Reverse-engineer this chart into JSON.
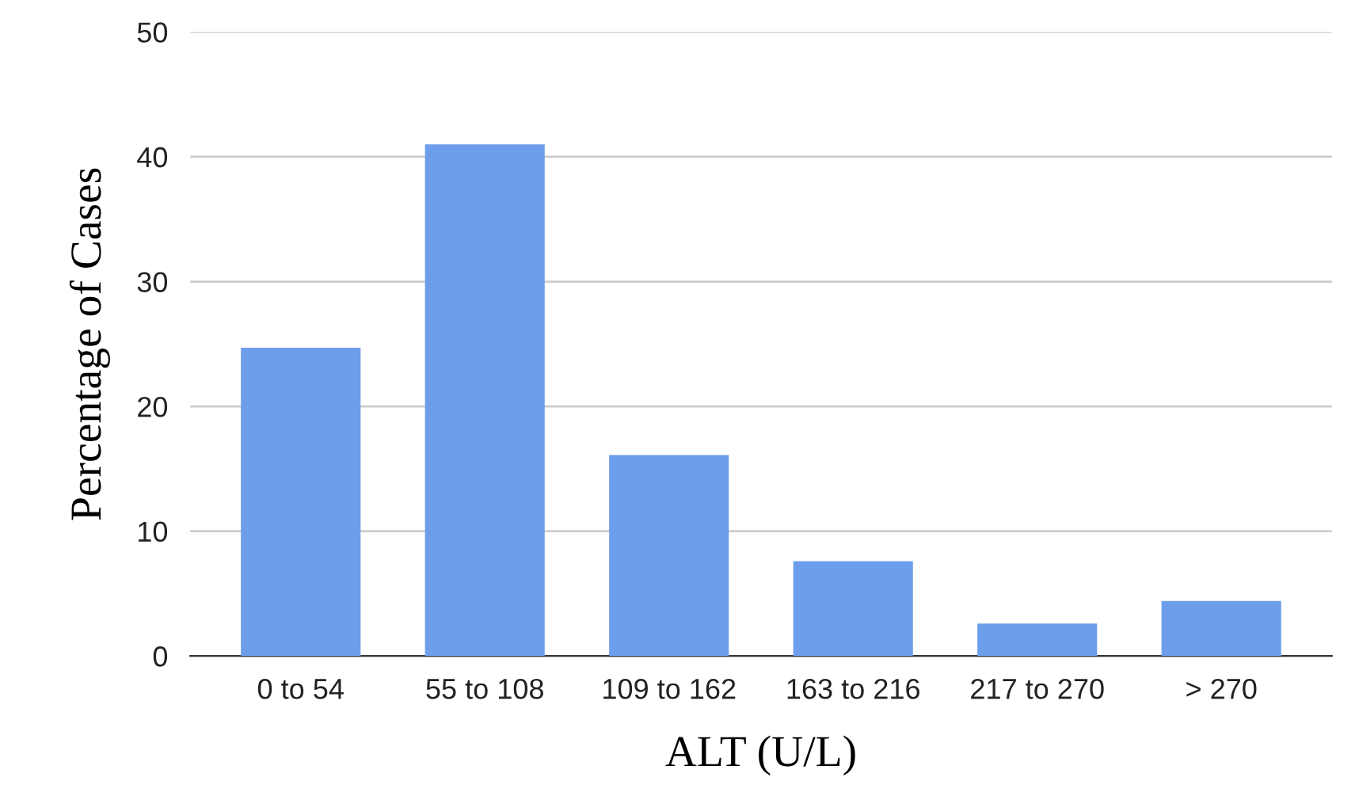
{
  "chart_data": {
    "type": "bar",
    "xlabel": "ALT (U/L)",
    "ylabel": "Percentage of Cases",
    "categories": [
      "0 to 54",
      "55 to 108",
      "109 to 162",
      "163 to 216",
      "217 to 270",
      "> 270"
    ],
    "values": [
      24.7,
      41,
      16.1,
      7.6,
      2.6,
      4.4
    ],
    "color": "#6d9eeb",
    "ylim": [
      0,
      50
    ],
    "yticks": [
      0,
      10,
      20,
      30,
      40,
      50
    ],
    "grid": "y"
  }
}
